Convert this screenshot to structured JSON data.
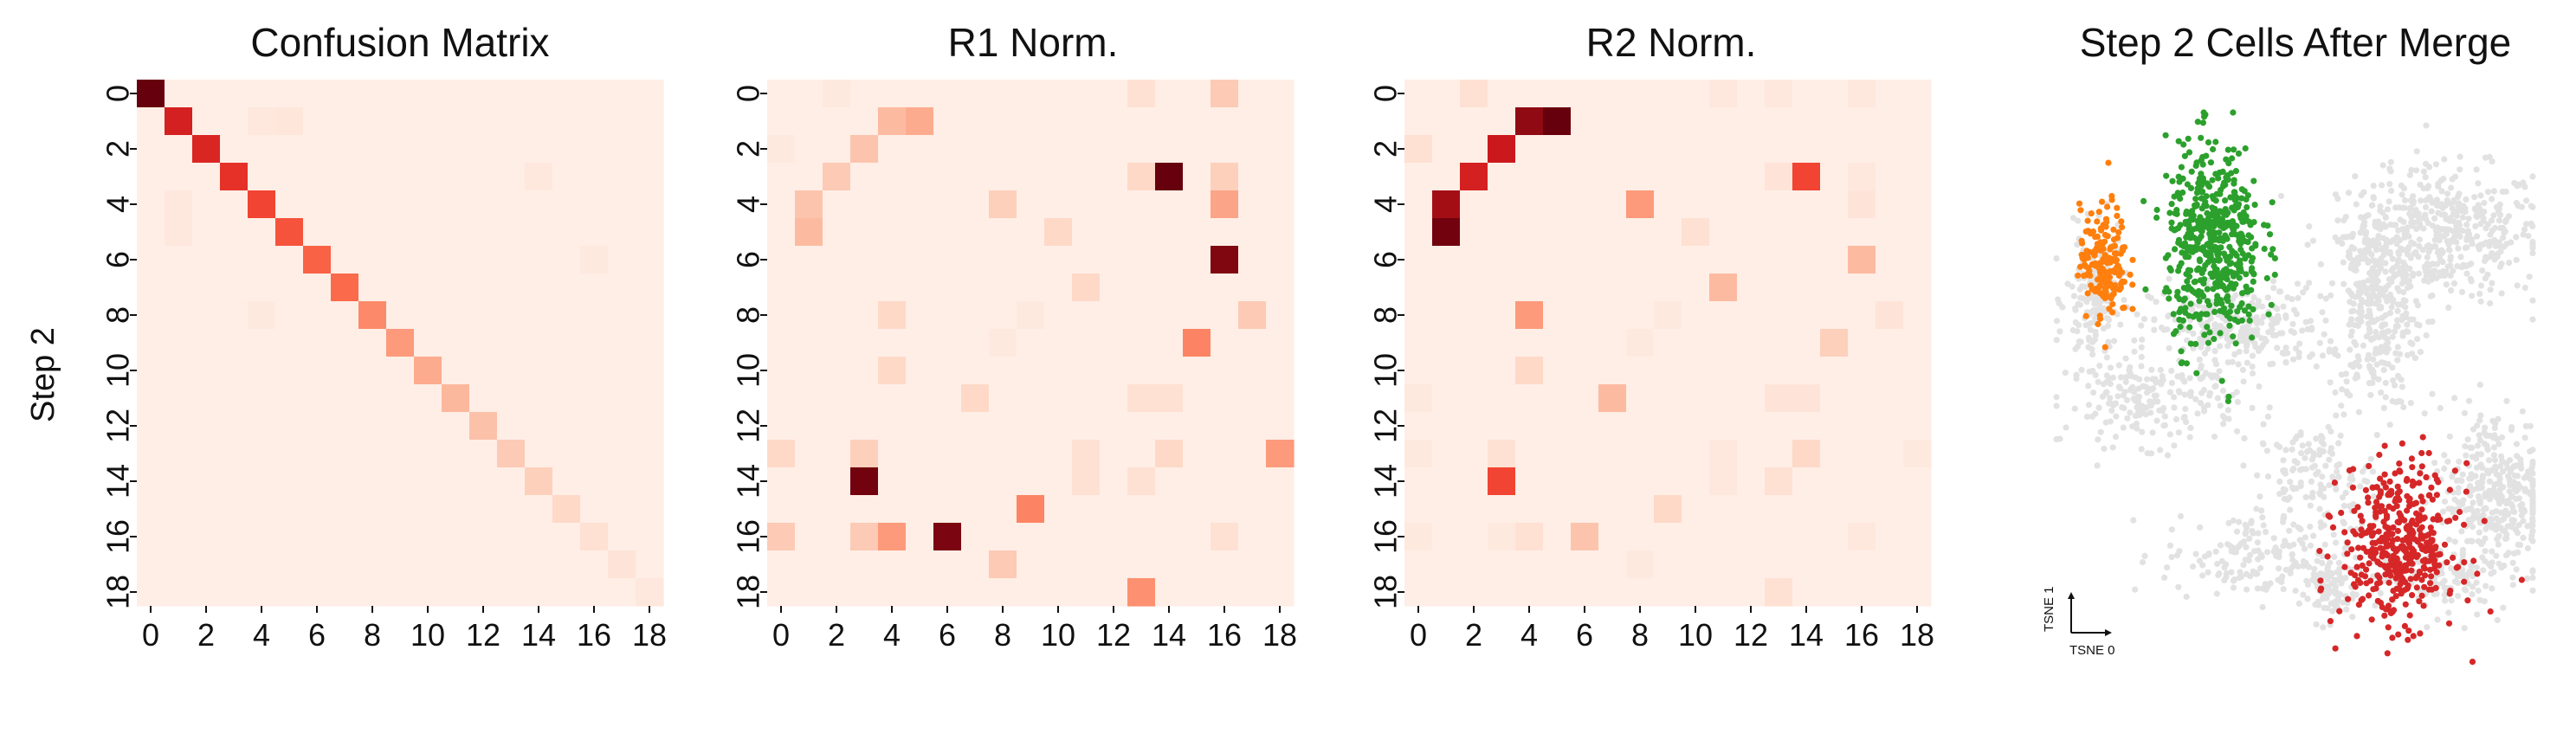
{
  "figure": {
    "ylabel": "Step 2"
  },
  "chart_data": [
    {
      "type": "heatmap",
      "title": "Confusion Matrix",
      "size": 19,
      "xticks": [
        0,
        2,
        4,
        6,
        8,
        10,
        12,
        14,
        16,
        18
      ],
      "yticks": [
        0,
        2,
        4,
        6,
        8,
        10,
        12,
        14,
        16,
        18
      ],
      "ylabel": "Step 2",
      "colormap": "Reds",
      "background": 0.04,
      "cells": [
        [
          0,
          0,
          1.0
        ],
        [
          1,
          1,
          0.72
        ],
        [
          2,
          2,
          0.7
        ],
        [
          3,
          3,
          0.66
        ],
        [
          4,
          4,
          0.6
        ],
        [
          5,
          5,
          0.56
        ],
        [
          6,
          6,
          0.52
        ],
        [
          7,
          7,
          0.5
        ],
        [
          8,
          8,
          0.4
        ],
        [
          9,
          9,
          0.35
        ],
        [
          10,
          10,
          0.3
        ],
        [
          11,
          11,
          0.26
        ],
        [
          12,
          12,
          0.23
        ],
        [
          13,
          13,
          0.2
        ],
        [
          14,
          14,
          0.18
        ],
        [
          15,
          15,
          0.15
        ],
        [
          16,
          16,
          0.12
        ],
        [
          17,
          17,
          0.1
        ],
        [
          18,
          18,
          0.08
        ],
        [
          1,
          4,
          0.08
        ],
        [
          1,
          5,
          0.09
        ],
        [
          3,
          14,
          0.08
        ],
        [
          4,
          1,
          0.08
        ],
        [
          5,
          1,
          0.08
        ],
        [
          6,
          16,
          0.07
        ],
        [
          8,
          4,
          0.07
        ]
      ]
    },
    {
      "type": "heatmap",
      "title": "R1 Norm.",
      "size": 19,
      "xticks": [
        0,
        2,
        4,
        6,
        8,
        10,
        12,
        14,
        16,
        18
      ],
      "yticks": [
        0,
        2,
        4,
        6,
        8,
        10,
        12,
        14,
        16,
        18
      ],
      "colormap": "Reds",
      "background": 0.04,
      "cells": [
        [
          0,
          2,
          0.07
        ],
        [
          0,
          13,
          0.12
        ],
        [
          0,
          16,
          0.2
        ],
        [
          1,
          4,
          0.25
        ],
        [
          1,
          5,
          0.3
        ],
        [
          2,
          0,
          0.07
        ],
        [
          2,
          3,
          0.22
        ],
        [
          3,
          2,
          0.2
        ],
        [
          3,
          13,
          0.15
        ],
        [
          3,
          14,
          1.0
        ],
        [
          3,
          16,
          0.18
        ],
        [
          4,
          1,
          0.22
        ],
        [
          4,
          8,
          0.18
        ],
        [
          4,
          16,
          0.32
        ],
        [
          5,
          1,
          0.25
        ],
        [
          5,
          10,
          0.15
        ],
        [
          6,
          16,
          0.95
        ],
        [
          7,
          11,
          0.15
        ],
        [
          8,
          4,
          0.15
        ],
        [
          8,
          9,
          0.07
        ],
        [
          8,
          17,
          0.2
        ],
        [
          9,
          8,
          0.07
        ],
        [
          9,
          15,
          0.42
        ],
        [
          10,
          4,
          0.15
        ],
        [
          11,
          7,
          0.15
        ],
        [
          11,
          13,
          0.12
        ],
        [
          11,
          14,
          0.12
        ],
        [
          13,
          0,
          0.15
        ],
        [
          13,
          3,
          0.18
        ],
        [
          13,
          11,
          0.12
        ],
        [
          13,
          14,
          0.15
        ],
        [
          13,
          18,
          0.35
        ],
        [
          14,
          3,
          0.98
        ],
        [
          14,
          11,
          0.12
        ],
        [
          14,
          13,
          0.12
        ],
        [
          15,
          9,
          0.42
        ],
        [
          16,
          0,
          0.2
        ],
        [
          16,
          3,
          0.2
        ],
        [
          16,
          4,
          0.35
        ],
        [
          16,
          6,
          0.96
        ],
        [
          16,
          16,
          0.12
        ],
        [
          17,
          8,
          0.2
        ],
        [
          18,
          13,
          0.38
        ]
      ]
    },
    {
      "type": "heatmap",
      "title": "R2 Norm.",
      "size": 19,
      "xticks": [
        0,
        2,
        4,
        6,
        8,
        10,
        12,
        14,
        16,
        18
      ],
      "yticks": [
        0,
        2,
        4,
        6,
        8,
        10,
        12,
        14,
        16,
        18
      ],
      "colormap": "Reds",
      "background": 0.04,
      "cells": [
        [
          0,
          2,
          0.12
        ],
        [
          0,
          11,
          0.08
        ],
        [
          0,
          13,
          0.08
        ],
        [
          0,
          16,
          0.08
        ],
        [
          1,
          4,
          0.92
        ],
        [
          1,
          5,
          1.0
        ],
        [
          2,
          0,
          0.12
        ],
        [
          2,
          3,
          0.75
        ],
        [
          3,
          2,
          0.72
        ],
        [
          3,
          13,
          0.1
        ],
        [
          3,
          14,
          0.6
        ],
        [
          3,
          16,
          0.08
        ],
        [
          4,
          1,
          0.88
        ],
        [
          4,
          8,
          0.35
        ],
        [
          4,
          16,
          0.1
        ],
        [
          5,
          1,
          0.98
        ],
        [
          5,
          10,
          0.12
        ],
        [
          6,
          16,
          0.25
        ],
        [
          7,
          11,
          0.25
        ],
        [
          8,
          4,
          0.35
        ],
        [
          8,
          9,
          0.07
        ],
        [
          8,
          17,
          0.1
        ],
        [
          9,
          8,
          0.07
        ],
        [
          9,
          15,
          0.18
        ],
        [
          10,
          4,
          0.15
        ],
        [
          11,
          0,
          0.07
        ],
        [
          11,
          7,
          0.25
        ],
        [
          11,
          13,
          0.1
        ],
        [
          11,
          14,
          0.1
        ],
        [
          13,
          0,
          0.07
        ],
        [
          13,
          3,
          0.12
        ],
        [
          13,
          11,
          0.08
        ],
        [
          13,
          14,
          0.15
        ],
        [
          13,
          18,
          0.07
        ],
        [
          14,
          3,
          0.6
        ],
        [
          14,
          11,
          0.08
        ],
        [
          14,
          13,
          0.12
        ],
        [
          15,
          9,
          0.15
        ],
        [
          16,
          0,
          0.07
        ],
        [
          16,
          3,
          0.07
        ],
        [
          16,
          4,
          0.12
        ],
        [
          16,
          6,
          0.22
        ],
        [
          16,
          16,
          0.08
        ],
        [
          17,
          8,
          0.07
        ],
        [
          18,
          13,
          0.12
        ]
      ]
    },
    {
      "type": "scatter",
      "title": "Step 2 Cells After Merge",
      "xlabel": "TSNE 0",
      "ylabel": "TSNE 1",
      "xlim": [
        0,
        100
      ],
      "ylim": [
        0,
        100
      ],
      "colors": {
        "background": "#e2e2e2",
        "orange": "#ff7f0e",
        "green": "#2ca02c",
        "red": "#d62728"
      },
      "groups": [
        {
          "color": "background",
          "n": 420,
          "cx": 82,
          "cy": 78,
          "sx": 10,
          "sy": 6
        },
        {
          "color": "background",
          "n": 380,
          "cx": 67,
          "cy": 66,
          "sx": 5,
          "sy": 10
        },
        {
          "color": "background",
          "n": 260,
          "cx": 38,
          "cy": 61,
          "sx": 9,
          "sy": 4
        },
        {
          "color": "background",
          "n": 200,
          "cx": 20,
          "cy": 48,
          "sx": 9,
          "sy": 4
        },
        {
          "color": "background",
          "n": 160,
          "cx": 8,
          "cy": 66,
          "sx": 3,
          "sy": 6
        },
        {
          "color": "background",
          "n": 180,
          "cx": 42,
          "cy": 20,
          "sx": 10,
          "sy": 4
        },
        {
          "color": "background",
          "n": 380,
          "cx": 92,
          "cy": 31,
          "sx": 6,
          "sy": 8
        },
        {
          "color": "background",
          "n": 120,
          "cx": 54,
          "cy": 35,
          "sx": 6,
          "sy": 4
        },
        {
          "color": "background",
          "n": 90,
          "cx": 79,
          "cy": 16,
          "sx": 6,
          "sy": 3
        },
        {
          "color": "background",
          "n": 90,
          "cx": 57,
          "cy": 14,
          "sx": 3,
          "sy": 3
        },
        {
          "color": "orange",
          "n": 170,
          "cx": 10,
          "cy": 73,
          "sx": 2.5,
          "sy": 5
        },
        {
          "color": "green",
          "n": 520,
          "cx": 33,
          "cy": 76,
          "sx": 5,
          "sy": 9
        },
        {
          "color": "red",
          "n": 430,
          "cx": 72,
          "cy": 22,
          "sx": 6,
          "sy": 7
        }
      ]
    }
  ]
}
